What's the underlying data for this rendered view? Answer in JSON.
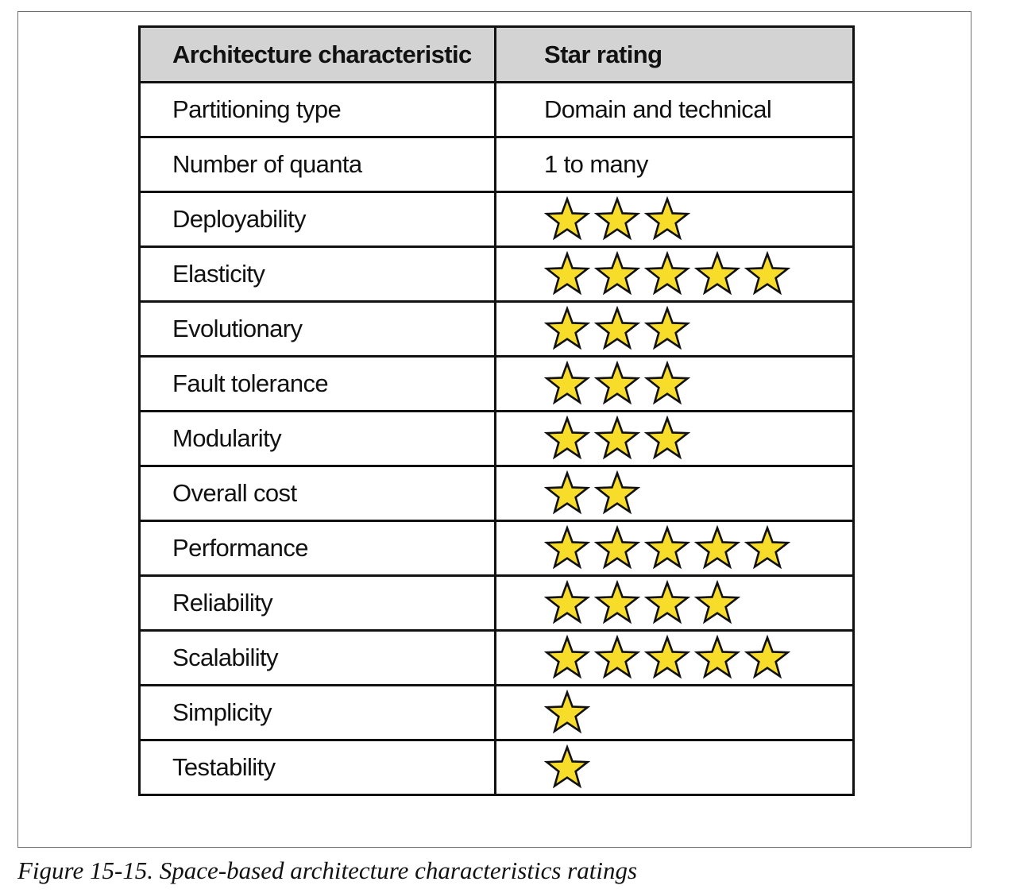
{
  "table": {
    "headers": {
      "characteristic": "Architecture characteristic",
      "rating": "Star rating"
    },
    "rows": [
      {
        "characteristic": "Partitioning type",
        "rating_text": "Domain and technical"
      },
      {
        "characteristic": "Number of quanta",
        "rating_text": "1 to many"
      },
      {
        "characteristic": "Deployability",
        "stars": 3
      },
      {
        "characteristic": "Elasticity",
        "stars": 5
      },
      {
        "characteristic": "Evolutionary",
        "stars": 3
      },
      {
        "characteristic": "Fault tolerance",
        "stars": 3
      },
      {
        "characteristic": "Modularity",
        "stars": 3
      },
      {
        "characteristic": "Overall cost",
        "stars": 2
      },
      {
        "characteristic": "Performance",
        "stars": 5
      },
      {
        "characteristic": "Reliability",
        "stars": 4
      },
      {
        "characteristic": "Scalability",
        "stars": 5
      },
      {
        "characteristic": "Simplicity",
        "stars": 1
      },
      {
        "characteristic": "Testability",
        "stars": 1
      }
    ]
  },
  "caption": "Figure 15-15. Space-based architecture characteristics ratings",
  "colors": {
    "star_fill": "#f7dc2a",
    "star_stroke": "#111111",
    "header_background": "#d3d3d3",
    "border": "#111111"
  },
  "icons": {
    "star": "star-icon"
  }
}
